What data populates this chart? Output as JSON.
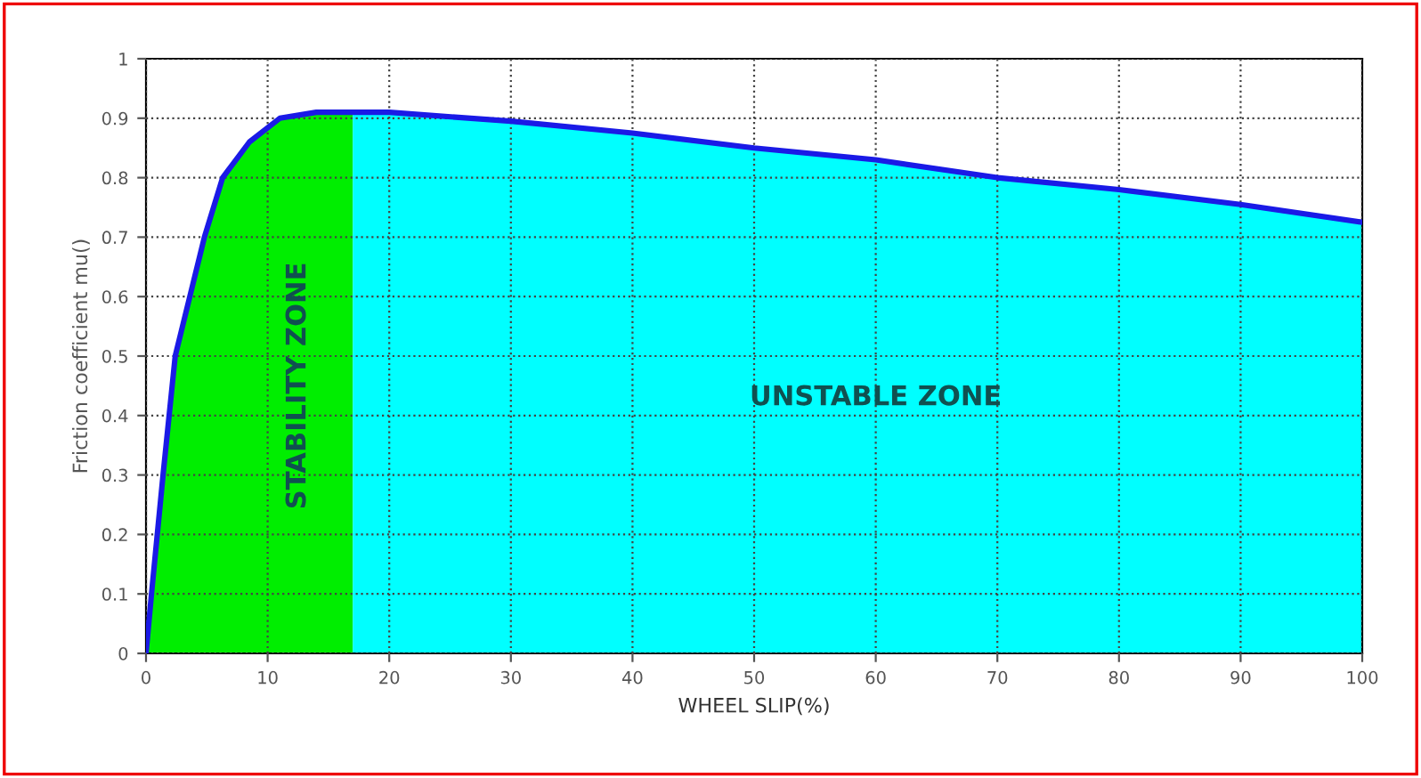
{
  "chart_data": {
    "type": "area",
    "xlabel": "WHEEL SLIP(%)",
    "ylabel": "Friction coefficient mu()",
    "series": [
      {
        "color": "#00ee00",
        "x": [
          0,
          0.45,
          1.4,
          2.4,
          4.8,
          6.3,
          8.5,
          11,
          14,
          17
        ],
        "values": [
          0,
          0.1,
          0.3,
          0.5,
          0.7,
          0.8,
          0.86,
          0.9,
          0.91,
          0.91
        ]
      },
      {
        "color": "#00ffff",
        "x": [
          17,
          20,
          30,
          40,
          50,
          60,
          70,
          80,
          90,
          100
        ],
        "values": [
          0.91,
          0.91,
          0.895,
          0.875,
          0.85,
          0.83,
          0.8,
          0.78,
          0.755,
          0.725
        ]
      },
      {
        "type": "line",
        "color": "#1a1ae6",
        "x": [
          0,
          0.45,
          1.4,
          2.4,
          4.8,
          6.3,
          8.5,
          11,
          14,
          17,
          20,
          30,
          40,
          50,
          60,
          70,
          80,
          90,
          100
        ],
        "values": [
          0,
          0.1,
          0.3,
          0.5,
          0.7,
          0.8,
          0.86,
          0.9,
          0.91,
          0.91,
          0.91,
          0.895,
          0.875,
          0.85,
          0.83,
          0.8,
          0.78,
          0.755,
          0.725
        ]
      }
    ],
    "annotations": [
      "STABILITY ZONE",
      "UNSTABLE ZONE"
    ],
    "xlim": [
      0,
      100
    ],
    "xticks": [
      0,
      10,
      20,
      30,
      40,
      50,
      60,
      70,
      80,
      90,
      100
    ],
    "ylim": [
      0,
      1
    ],
    "yticks": [
      0,
      0.1,
      0.2,
      0.3,
      0.4,
      0.5,
      0.6,
      0.7,
      0.8,
      0.9,
      1
    ],
    "grid": true,
    "line_style": "solid",
    "marker": "none",
    "legend": false
  }
}
